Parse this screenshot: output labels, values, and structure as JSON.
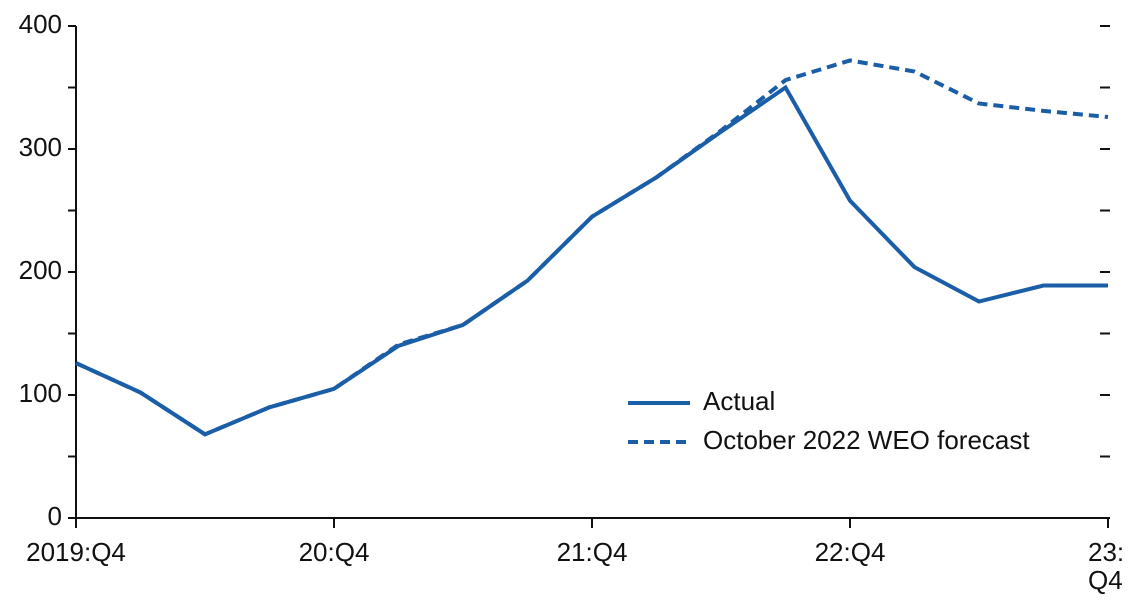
{
  "chart_data": {
    "type": "line",
    "categories": [
      "2019:Q4",
      null,
      null,
      null,
      "20:Q4",
      null,
      null,
      null,
      "21:Q4",
      null,
      null,
      null,
      "22:Q4",
      null,
      null,
      null,
      "23:Q4"
    ],
    "series": [
      {
        "name": "Actual",
        "color": "#1a5ea8",
        "dash": false,
        "values": [
          126,
          102,
          68,
          90,
          105,
          140,
          157,
          193,
          245,
          277,
          314,
          350,
          258,
          204,
          176,
          189,
          189
        ]
      },
      {
        "name": "October 2022 WEO forecast",
        "color": "#1a5ea8",
        "dash": true,
        "values": [
          126,
          102,
          68,
          90,
          105,
          141,
          157,
          193,
          245,
          277,
          315,
          356,
          372,
          363,
          337,
          331,
          326
        ]
      }
    ],
    "ylim": [
      0,
      400
    ],
    "yticks": [
      0,
      100,
      200,
      300,
      400
    ],
    "yticks_minor": [
      50,
      150,
      250,
      350
    ],
    "right_ticks": true,
    "grid": false,
    "legend": "lower right"
  }
}
